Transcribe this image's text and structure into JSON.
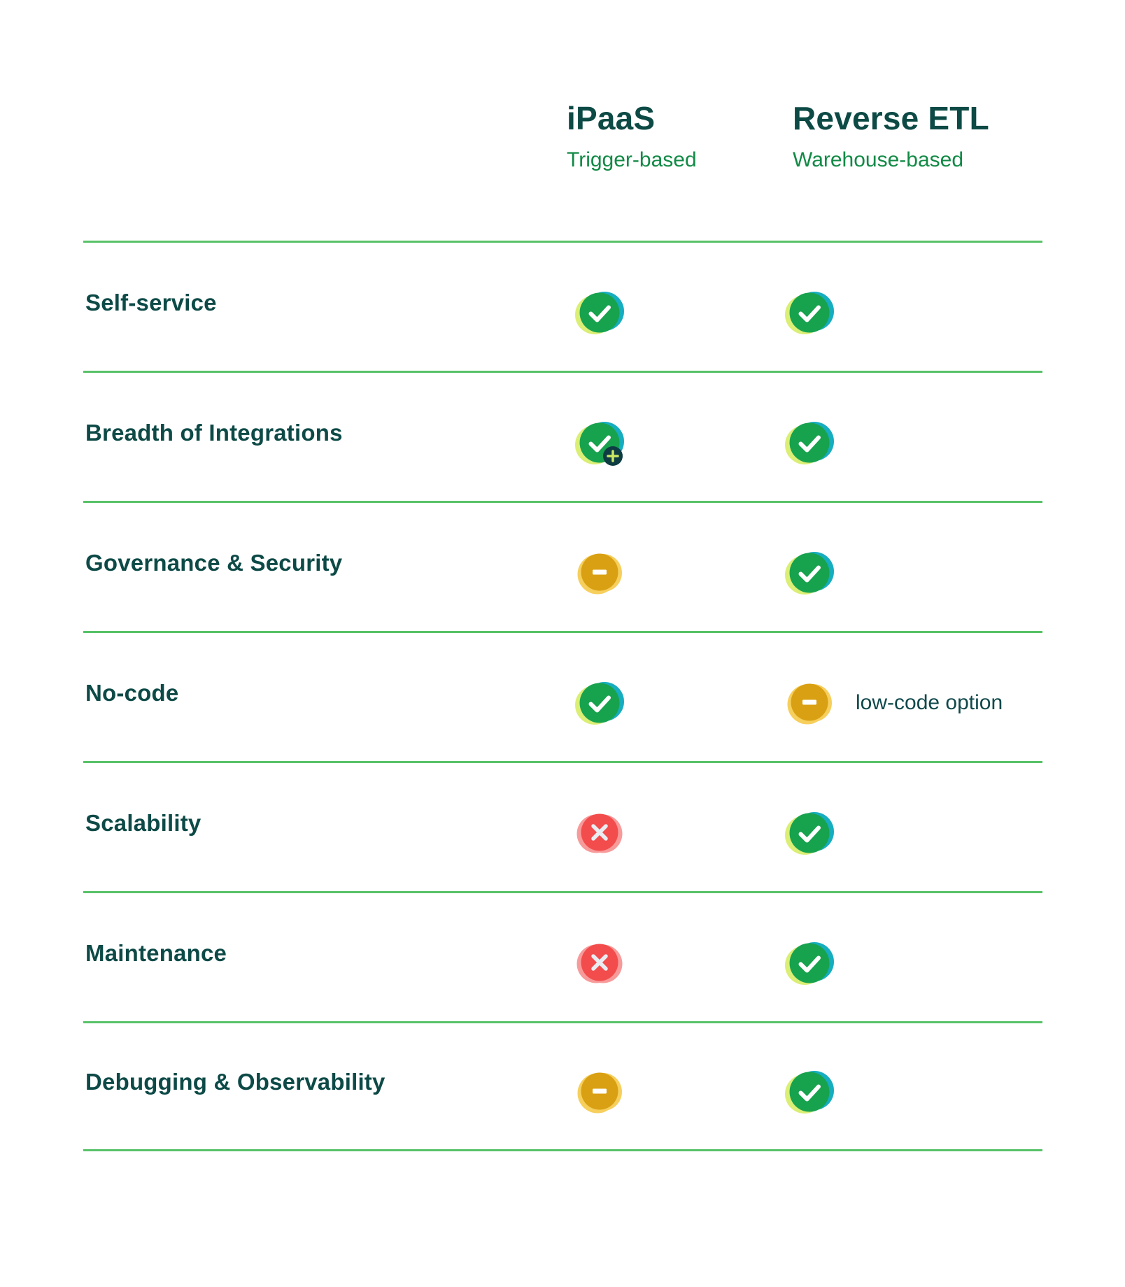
{
  "columns": [
    {
      "title": "iPaaS",
      "subtitle": "Trigger-based"
    },
    {
      "title": "Reverse ETL",
      "subtitle": "Warehouse-based"
    }
  ],
  "rows": [
    {
      "label": "Self-service",
      "ipaas": {
        "icon": "check"
      },
      "reverse_etl": {
        "icon": "check"
      }
    },
    {
      "label": "Breadth of Integrations",
      "ipaas": {
        "icon": "check-plus"
      },
      "reverse_etl": {
        "icon": "check"
      }
    },
    {
      "label": "Governance & Security",
      "ipaas": {
        "icon": "minus"
      },
      "reverse_etl": {
        "icon": "check"
      }
    },
    {
      "label": "No-code",
      "ipaas": {
        "icon": "check"
      },
      "reverse_etl": {
        "icon": "minus",
        "note": "low-code option"
      }
    },
    {
      "label": "Scalability",
      "ipaas": {
        "icon": "cross"
      },
      "reverse_etl": {
        "icon": "check"
      }
    },
    {
      "label": "Maintenance",
      "ipaas": {
        "icon": "cross"
      },
      "reverse_etl": {
        "icon": "check"
      }
    },
    {
      "label": "Debugging & Observability",
      "ipaas": {
        "icon": "minus"
      },
      "reverse_etl": {
        "icon": "check"
      }
    }
  ],
  "colors": {
    "heading_text": "#0d4a45",
    "subtitle_text": "#128a46",
    "label_text": "#0d4a47",
    "note_text": "#10494c",
    "divider": "#58c268",
    "check_green": "#17a24e",
    "accent_lime": "#dbee75",
    "accent_teal": "#16adc0",
    "minus_gold": "#d9a013",
    "minus_gold_light": "#f6cf5d",
    "cross_red": "#f34c4c",
    "cross_red_light": "#f79a9a",
    "cross_stroke": "#e9edf2",
    "badge_bg": "#0d3c43",
    "badge_plus": "#cbe763",
    "mark_white": "#ffffff"
  }
}
